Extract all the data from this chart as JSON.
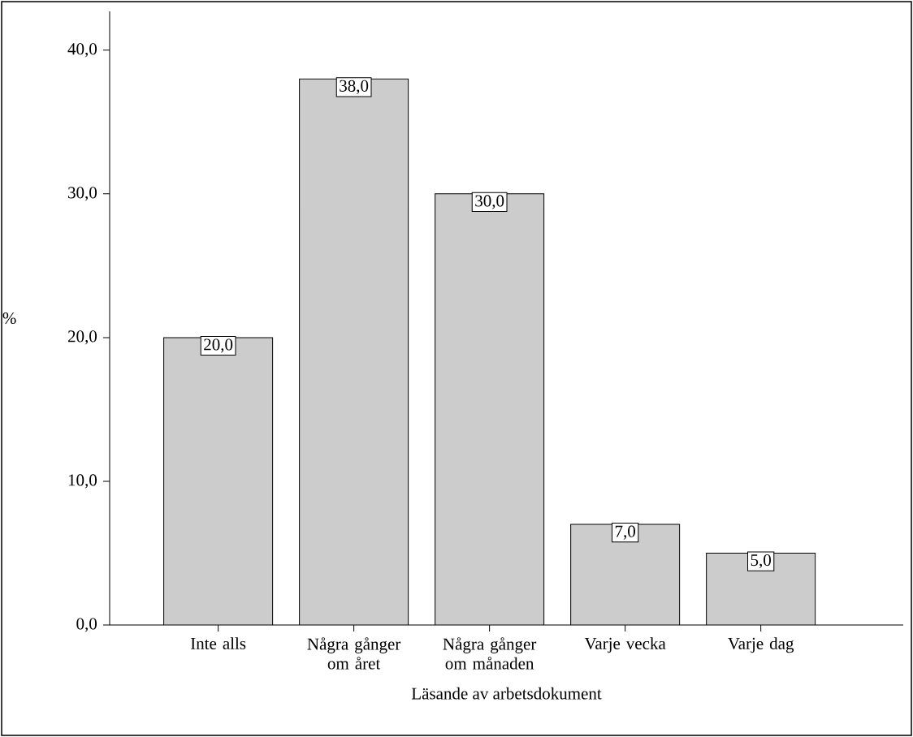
{
  "chart_data": {
    "type": "bar",
    "xlabel": "Läsande av arbetsdokument",
    "ylabel": "%",
    "categories": [
      "Inte alls",
      "Några gånger om året",
      "Några gånger om månaden",
      "Varje vecka",
      "Varje dag"
    ],
    "values": [
      20,
      38,
      30,
      7,
      5
    ],
    "value_labels": [
      "20,0",
      "38,0",
      "30,0",
      "7,0",
      "5,0"
    ],
    "color": "#cccccc",
    "ylim": [
      0,
      42.7
    ],
    "yticks": [
      {
        "value": 0,
        "label": "0,0"
      },
      {
        "value": 10,
        "label": "10,0"
      },
      {
        "value": 20,
        "label": "20,0"
      },
      {
        "value": 30,
        "label": "30,0"
      },
      {
        "value": 40,
        "label": "40,0"
      }
    ]
  }
}
